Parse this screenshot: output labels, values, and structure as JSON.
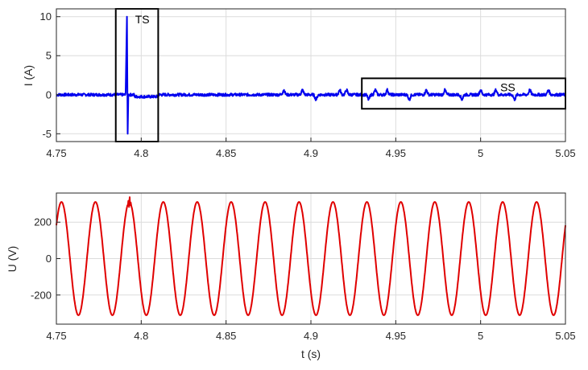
{
  "chart_data": [
    {
      "type": "line",
      "ylabel": "I (A)",
      "xlabel": "",
      "xlim": [
        4.75,
        5.05
      ],
      "ylim": [
        -6,
        11
      ],
      "grid": true,
      "xticks": [
        "4.75",
        "4.8",
        "4.85",
        "4.9",
        "4.95",
        "5",
        "5.05"
      ],
      "yticks": [
        "10",
        "5",
        "0",
        "-5"
      ],
      "ytick_values": [
        10,
        5,
        0,
        -5
      ],
      "xtick_values": [
        4.75,
        4.8,
        4.85,
        4.9,
        4.95,
        5,
        5.05
      ],
      "series": [
        {
          "color": "#0000ee",
          "baseline": 0,
          "spike": {
            "t": 4.792,
            "peak": 10,
            "trough": -5
          },
          "small_pulses_t": [
            4.884,
            4.895,
            4.903,
            4.917,
            4.921,
            4.934,
            4.938,
            4.945,
            4.958,
            4.968,
            4.979,
            4.989,
            5.0,
            5.009,
            5.02,
            5.029,
            5.04
          ],
          "small_pulse_amp": 0.6
        }
      ],
      "annotations": [
        {
          "label": "TS",
          "box_x": [
            4.785,
            4.81
          ],
          "box_y": [
            -6,
            11
          ]
        },
        {
          "label": "SS",
          "box_x": [
            4.93,
            5.05
          ],
          "box_y": [
            -1.8,
            2.1
          ]
        }
      ]
    },
    {
      "type": "line",
      "ylabel": "U (V)",
      "xlabel": "t (s)",
      "xlim": [
        4.75,
        5.05
      ],
      "ylim": [
        -360,
        360
      ],
      "grid": true,
      "xticks": [
        "4.75",
        "4.8",
        "4.85",
        "4.9",
        "4.95",
        "5",
        "5.05"
      ],
      "yticks": [
        "200",
        "0",
        "-200"
      ],
      "ytick_values": [
        200,
        0,
        -200
      ],
      "xtick_values": [
        4.75,
        4.8,
        4.85,
        4.9,
        4.95,
        5,
        5.05
      ],
      "series": [
        {
          "color": "#e00000",
          "amplitude": 311,
          "frequency_hz": 50,
          "phase_peak_t": 4.753,
          "disturbance_t": 4.793
        }
      ]
    }
  ]
}
